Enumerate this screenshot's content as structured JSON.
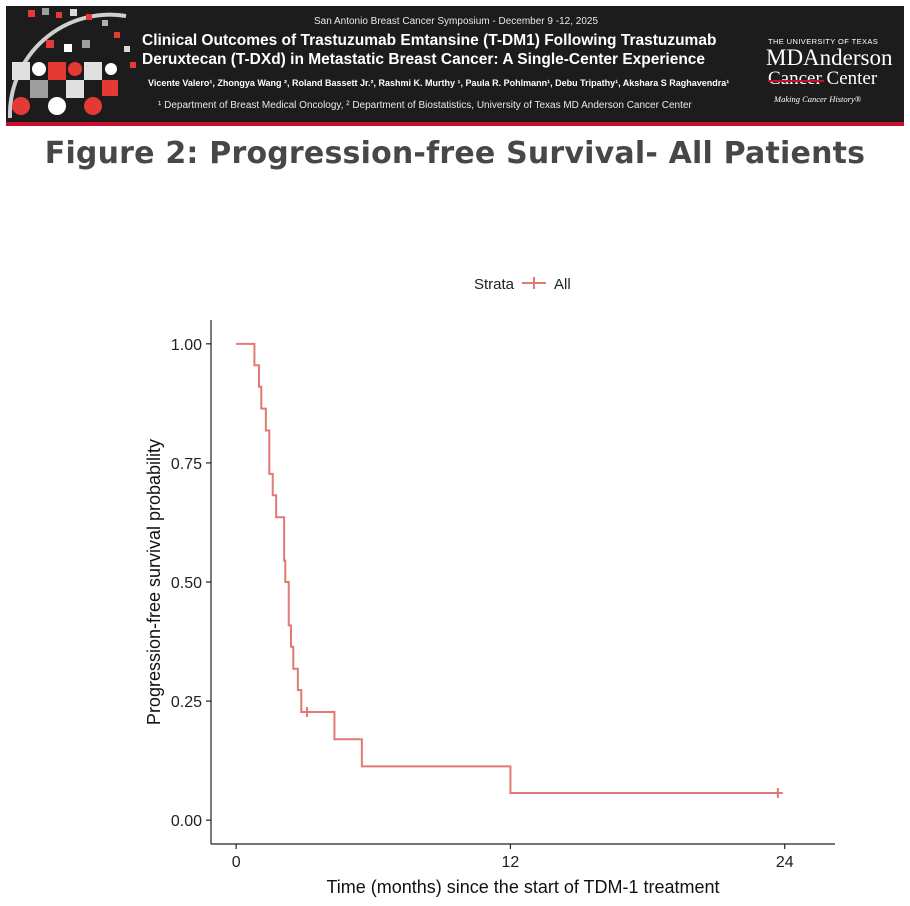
{
  "header": {
    "conference": "San Antonio Breast Cancer Symposium - December 9 -12, 2025",
    "title_line1": "Clinical Outcomes of Trastuzumab Emtansine (T-DM1) Following Trastuzumab",
    "title_line2": "Deruxtecan (T-DXd) in Metastatic Breast Cancer: A Single-Center Experience",
    "authors": "Vicente Valero¹, Zhongya Wang ², Roland Bassett Jr.², Rashmi K. Murthy ¹, Paula R. Pohlmann¹, Debu Tripathy¹, Akshara S Raghavendra¹",
    "affiliations": "¹ Department of Breast Medical Oncology, ² Department of Biostatistics, University of Texas MD Anderson Cancer Center",
    "logo": {
      "university": "THE UNIVERSITY OF TEXAS",
      "name_line1": "MDAnderson",
      "name_line2": "Cancer Center",
      "tagline": "Making Cancer History®"
    },
    "colors": {
      "banner": "#1c1c1c",
      "accent": "#c8102e"
    }
  },
  "figure_title": "Figure 2: Progression-free Survival- All Patients",
  "chart_data": {
    "type": "line",
    "step": true,
    "xlabel": "Time (months) since the start of TDM-1 treatment",
    "ylabel": "Progression-free survival probability",
    "xlim": [
      -1.1,
      26.2
    ],
    "ylim": [
      -0.05,
      1.05
    ],
    "xticks": [
      0,
      12,
      24
    ],
    "xtick_labels": [
      "0",
      "12",
      "24"
    ],
    "yticks": [
      0,
      0.25,
      0.5,
      0.75,
      1
    ],
    "ytick_labels": [
      "0.00",
      "0.25",
      "0.50",
      "0.75",
      "1.00"
    ],
    "grid": false,
    "legend": {
      "position": "top",
      "title": "Strata",
      "entries": [
        "All"
      ]
    },
    "series": [
      {
        "name": "All",
        "color": "#e07a72",
        "steps": [
          [
            0,
            1.0
          ],
          [
            0.8,
            0.955
          ],
          [
            1.0,
            0.91
          ],
          [
            1.1,
            0.864
          ],
          [
            1.3,
            0.818
          ],
          [
            1.45,
            0.727
          ],
          [
            1.6,
            0.682
          ],
          [
            1.75,
            0.636
          ],
          [
            2.1,
            0.545
          ],
          [
            2.15,
            0.5
          ],
          [
            2.3,
            0.409
          ],
          [
            2.4,
            0.364
          ],
          [
            2.5,
            0.318
          ],
          [
            2.7,
            0.273
          ],
          [
            2.85,
            0.227
          ],
          [
            4.3,
            0.17
          ],
          [
            5.5,
            0.113
          ],
          [
            12.0,
            0.057
          ]
        ],
        "end_x": 23.7,
        "censored": [
          [
            3.1,
            0.227
          ],
          [
            23.7,
            0.057
          ]
        ]
      }
    ]
  }
}
